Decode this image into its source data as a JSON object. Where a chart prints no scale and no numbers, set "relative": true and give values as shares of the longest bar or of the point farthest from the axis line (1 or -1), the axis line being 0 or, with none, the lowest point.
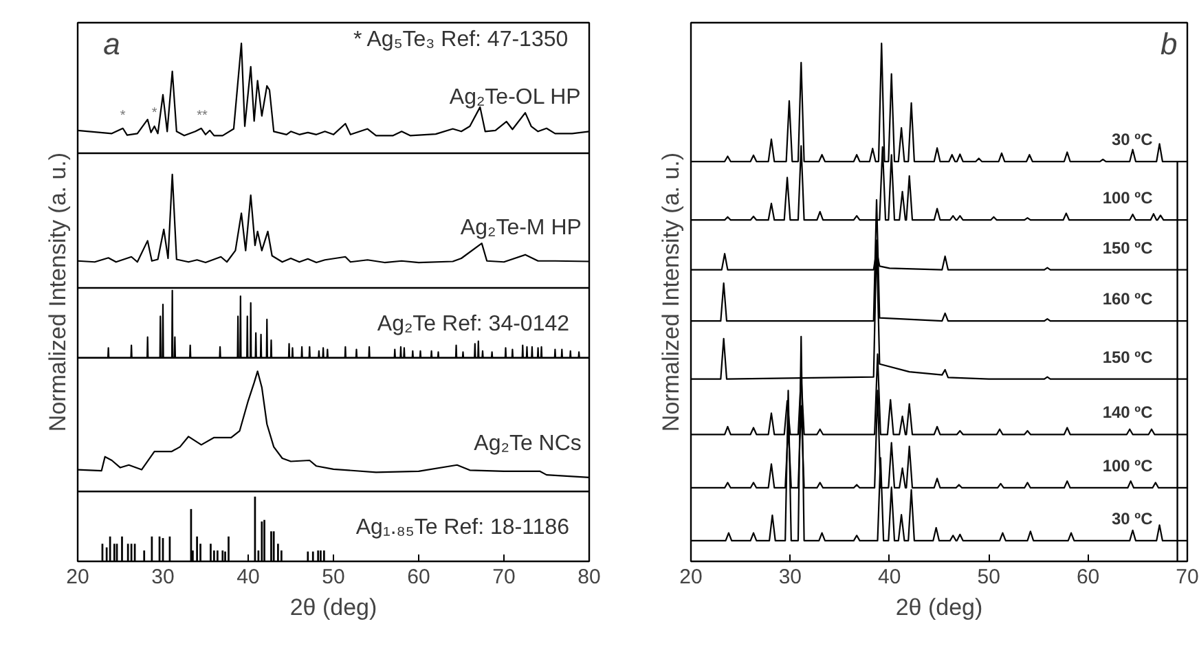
{
  "chart_data": [
    {
      "type": "line",
      "title": "a",
      "xlabel": "2θ (deg)",
      "ylabel": "Normalized Intensity (a. u.)",
      "relative": true,
      "xlim": [
        20,
        80
      ],
      "xticks": [
        20,
        30,
        40,
        50,
        60,
        70,
        80
      ],
      "grid": false,
      "annotations": [
        "* Ag₅Te₃   Ref: 47-1350",
        {
          "text": "*",
          "x": 25.3,
          "y": 0.845
        },
        {
          "text": "*",
          "x": 29.0,
          "y": 0.85
        },
        {
          "text": "**",
          "x": 34.6,
          "y": 0.845
        }
      ],
      "ref_lines": [
        {
          "axis": "y",
          "value": 0.788
        },
        {
          "axis": "y",
          "value": 0.528
        },
        {
          "axis": "y",
          "value": 0.393
        },
        {
          "axis": "y",
          "value": 0.135
        }
      ],
      "series": [
        {
          "name": "Ag₂Te-OL HP",
          "type": "line",
          "color": "#000000",
          "x": [
            20,
            24,
            25.3,
            25.8,
            27,
            28.2,
            28.6,
            29.0,
            29.4,
            30.0,
            30.5,
            31.1,
            31.6,
            32.5,
            33.8,
            34.5,
            35,
            35.5,
            36,
            37,
            38.3,
            39.2,
            39.6,
            40.3,
            40.7,
            41.1,
            41.6,
            42.2,
            42.5,
            43,
            44.5,
            45,
            46,
            47,
            48,
            49,
            50,
            51.4,
            52,
            54,
            55,
            57,
            58,
            59,
            62,
            64,
            65,
            66,
            67.2,
            67.8,
            69,
            70.3,
            71,
            72.5,
            73.2,
            74,
            75,
            76,
            78,
            80
          ],
          "values": [
            0.832,
            0.826,
            0.836,
            0.823,
            0.826,
            0.853,
            0.828,
            0.84,
            0.826,
            0.901,
            0.83,
            0.946,
            0.83,
            0.822,
            0.83,
            0.836,
            0.824,
            0.832,
            0.822,
            0.822,
            0.835,
            1.0,
            0.84,
            0.955,
            0.85,
            0.928,
            0.86,
            0.918,
            0.91,
            0.83,
            0.824,
            0.83,
            0.824,
            0.828,
            0.824,
            0.83,
            0.824,
            0.845,
            0.824,
            0.835,
            0.822,
            0.822,
            0.83,
            0.822,
            0.825,
            0.835,
            0.83,
            0.84,
            0.877,
            0.83,
            0.832,
            0.849,
            0.834,
            0.866,
            0.84,
            0.83,
            0.836,
            0.826,
            0.826,
            0.83
          ]
        },
        {
          "name": "Ag₂Te-M HP",
          "type": "line",
          "color": "#000000",
          "x": [
            20,
            22,
            23.6,
            24.5,
            26.3,
            27,
            28.2,
            28.7,
            29.4,
            30.1,
            30.6,
            31.1,
            31.6,
            33,
            34,
            35,
            36.8,
            37.5,
            38.5,
            39.2,
            39.7,
            40.3,
            40.8,
            41.1,
            41.6,
            42.3,
            42.8,
            44,
            45,
            46,
            47,
            48,
            49,
            51.4,
            52,
            54,
            56,
            58,
            60,
            64,
            65,
            67.4,
            68,
            70,
            72.5,
            74,
            76,
            80
          ],
          "values": [
            0.58,
            0.578,
            0.586,
            0.578,
            0.588,
            0.578,
            0.619,
            0.58,
            0.583,
            0.641,
            0.585,
            0.747,
            0.583,
            0.578,
            0.582,
            0.577,
            0.588,
            0.578,
            0.6,
            0.672,
            0.6,
            0.707,
            0.61,
            0.637,
            0.6,
            0.637,
            0.59,
            0.578,
            0.585,
            0.578,
            0.584,
            0.577,
            0.582,
            0.588,
            0.578,
            0.582,
            0.577,
            0.58,
            0.577,
            0.579,
            0.585,
            0.614,
            0.58,
            0.578,
            0.592,
            0.58,
            0.58,
            0.579
          ]
        },
        {
          "name": "Ag₂Te   Ref: 34-0142",
          "type": "line",
          "color": "#000000",
          "x": [
            20,
            23.55,
            23.6,
            23.65,
            26.25,
            26.3,
            26.35,
            28.15,
            28.2,
            28.25,
            29.65,
            29.7,
            29.75,
            29.95,
            30.0,
            30.05,
            31.05,
            31.1,
            31.15,
            31.35,
            31.4,
            31.45,
            33.15,
            33.2,
            33.25,
            36.65,
            36.7,
            36.75,
            38.75,
            38.8,
            38.85,
            39.05,
            39.1,
            39.15,
            39.85,
            39.9,
            39.95,
            40.25,
            40.3,
            40.35,
            40.85,
            40.9,
            40.95,
            41.45,
            41.5,
            41.55,
            42.15,
            42.2,
            42.25,
            42.65,
            42.7,
            42.75,
            44.75,
            44.8,
            44.85,
            45.15,
            45.2,
            45.25,
            46.25,
            46.3,
            46.35,
            47.15,
            47.2,
            47.25,
            48.25,
            48.3,
            48.35,
            48.75,
            48.8,
            48.85,
            49.25,
            49.3,
            49.35,
            51.35,
            51.4,
            51.45,
            52.65,
            52.7,
            52.75,
            54.15,
            54.2,
            54.25,
            57.15,
            57.2,
            57.25,
            57.85,
            57.9,
            57.95,
            58.25,
            58.3,
            58.35,
            59.25,
            59.3,
            59.35,
            60.15,
            60.2,
            60.25,
            61.45,
            61.5,
            61.55,
            62.25,
            62.3,
            62.35,
            64.35,
            64.4,
            64.45,
            65.15,
            65.2,
            65.25,
            66.55,
            66.6,
            66.65,
            66.95,
            67.0,
            67.05,
            67.45,
            67.5,
            67.55,
            68.55,
            68.6,
            68.65,
            70.15,
            70.2,
            70.25,
            70.95,
            71.0,
            71.05,
            72.15,
            72.2,
            72.25,
            72.65,
            72.7,
            72.75,
            73.25,
            73.3,
            73.35,
            73.95,
            74.0,
            74.05,
            74.35,
            74.4,
            74.45,
            75.95,
            76.0,
            76.05,
            76.75,
            76.8,
            76.85,
            77.75,
            77.8,
            77.85,
            78.75,
            78.8,
            78.85,
            80
          ],
          "values": [
            0.393,
            0.393,
            0.412,
            0.393,
            0.393,
            0.417,
            0.393,
            0.393,
            0.433,
            0.393,
            0.393,
            0.473,
            0.393,
            0.393,
            0.496,
            0.393,
            0.393,
            0.523,
            0.393,
            0.393,
            0.433,
            0.393,
            0.393,
            0.417,
            0.393,
            0.393,
            0.414,
            0.393,
            0.393,
            0.473,
            0.393,
            0.393,
            0.512,
            0.393,
            0.393,
            0.473,
            0.393,
            0.393,
            0.499,
            0.393,
            0.393,
            0.441,
            0.393,
            0.393,
            0.438,
            0.393,
            0.393,
            0.467,
            0.393,
            0.393,
            0.427,
            0.393,
            0.393,
            0.42,
            0.393,
            0.393,
            0.412,
            0.393,
            0.393,
            0.414,
            0.393,
            0.393,
            0.414,
            0.393,
            0.393,
            0.406,
            0.393,
            0.393,
            0.412,
            0.393,
            0.393,
            0.409,
            0.393,
            0.393,
            0.414,
            0.393,
            0.393,
            0.409,
            0.393,
            0.393,
            0.414,
            0.393,
            0.393,
            0.409,
            0.393,
            0.393,
            0.414,
            0.393,
            0.393,
            0.412,
            0.393,
            0.393,
            0.406,
            0.393,
            0.393,
            0.406,
            0.393,
            0.393,
            0.406,
            0.393,
            0.393,
            0.404,
            0.393,
            0.393,
            0.417,
            0.393,
            0.393,
            0.404,
            0.393,
            0.393,
            0.42,
            0.393,
            0.393,
            0.425,
            0.393,
            0.393,
            0.406,
            0.393,
            0.393,
            0.404,
            0.393,
            0.393,
            0.412,
            0.393,
            0.393,
            0.409,
            0.393,
            0.393,
            0.417,
            0.393,
            0.393,
            0.414,
            0.393,
            0.393,
            0.414,
            0.393,
            0.393,
            0.412,
            0.393,
            0.393,
            0.414,
            0.393,
            0.393,
            0.409,
            0.393,
            0.393,
            0.409,
            0.393,
            0.393,
            0.406,
            0.393,
            0.393,
            0.404,
            0.393,
            0.393
          ]
        },
        {
          "name": "Ag₂Te NCs",
          "type": "line",
          "color": "#000000",
          "x": [
            20,
            22.8,
            23.2,
            24,
            25,
            26,
            27.5,
            29,
            31,
            32,
            33,
            34.5,
            36,
            38,
            39,
            40,
            40.7,
            41.1,
            41.6,
            42.2,
            43,
            44,
            45,
            47.2,
            48,
            50,
            55,
            60,
            64.5,
            66,
            70,
            74.2,
            75,
            80
          ],
          "values": [
            0.177,
            0.175,
            0.202,
            0.195,
            0.181,
            0.186,
            0.177,
            0.212,
            0.212,
            0.221,
            0.241,
            0.225,
            0.239,
            0.239,
            0.252,
            0.31,
            0.345,
            0.367,
            0.336,
            0.265,
            0.221,
            0.199,
            0.193,
            0.195,
            0.184,
            0.178,
            0.172,
            0.174,
            0.186,
            0.176,
            0.174,
            0.174,
            0.167,
            0.162
          ]
        },
        {
          "name": "Ag₁.₈₅Te   Ref: 18-1186",
          "type": "bar",
          "color": "#000000",
          "x": [
            22.9,
            23.4,
            23.8,
            24.3,
            24.6,
            25.2,
            25.9,
            26.3,
            26.7,
            27.8,
            28.7,
            29.6,
            30.0,
            30.8,
            33.3,
            33.5,
            34.0,
            34.4,
            35.6,
            36.0,
            36.4,
            37.0,
            37.3,
            37.7,
            40.8,
            41.2,
            41.6,
            41.9,
            42.7,
            43.0,
            43.5,
            43.9,
            47.0,
            47.6,
            48.2,
            48.5,
            48.9
          ],
          "values": [
            0.034,
            0.027,
            0.048,
            0.034,
            0.034,
            0.048,
            0.034,
            0.034,
            0.034,
            0.021,
            0.048,
            0.048,
            0.045,
            0.048,
            0.101,
            0.021,
            0.048,
            0.034,
            0.034,
            0.021,
            0.021,
            0.021,
            0.019,
            0.048,
            0.125,
            0.021,
            0.077,
            0.08,
            0.058,
            0.058,
            0.034,
            0.021,
            0.019,
            0.019,
            0.021,
            0.021,
            0.021
          ]
        }
      ]
    },
    {
      "type": "line",
      "title": "b",
      "xlabel": "2θ (deg)",
      "ylabel": "Normalized Intensity (a. u.)",
      "relative": true,
      "xlim": [
        20,
        70
      ],
      "xticks": [
        20,
        30,
        40,
        50,
        60,
        70
      ],
      "grid": false,
      "ref_lines": [
        {
          "axis": "x",
          "value": 69
        }
      ],
      "series": [
        {
          "name": "30 ºC",
          "color": "#000000",
          "x": [
            20,
            23.4,
            23.7,
            24.0,
            26.0,
            26.3,
            26.6,
            27.8,
            28.1,
            28.4,
            29.6,
            29.9,
            30.2,
            30.8,
            31.1,
            31.4,
            32.9,
            33.2,
            33.5,
            36.4,
            36.7,
            37.0,
            38.0,
            38.3,
            38.6,
            38.9,
            39.2,
            39.5,
            39.9,
            40.2,
            40.5,
            40.9,
            41.2,
            41.5,
            41.9,
            42.2,
            42.5,
            44.5,
            44.8,
            45.1,
            46.0,
            46.3,
            46.6,
            46.8,
            47.1,
            47.4,
            48.7,
            49.0,
            49.3,
            51.0,
            51.3,
            51.6,
            53.8,
            54.1,
            54.4,
            57.6,
            57.9,
            58.2,
            61.2,
            61.5,
            61.8,
            64.2,
            64.5,
            64.8,
            66.9,
            67.2,
            67.5,
            70
          ],
          "values": [
            0.772,
            0.772,
            0.782,
            0.772,
            0.772,
            0.784,
            0.772,
            0.772,
            0.815,
            0.772,
            0.772,
            0.889,
            0.772,
            0.772,
            0.963,
            0.772,
            0.772,
            0.785,
            0.772,
            0.772,
            0.785,
            0.772,
            0.772,
            0.797,
            0.772,
            0.772,
            1.0,
            0.772,
            0.772,
            0.941,
            0.772,
            0.772,
            0.837,
            0.772,
            0.772,
            0.885,
            0.772,
            0.772,
            0.798,
            0.772,
            0.772,
            0.785,
            0.772,
            0.772,
            0.786,
            0.772,
            0.772,
            0.778,
            0.772,
            0.772,
            0.788,
            0.772,
            0.772,
            0.785,
            0.772,
            0.772,
            0.79,
            0.772,
            0.772,
            0.776,
            0.772,
            0.772,
            0.795,
            0.772,
            0.772,
            0.806,
            0.772,
            0.772
          ]
        },
        {
          "name": "100 ºC",
          "color": "#000000",
          "x": [
            20,
            23.4,
            23.7,
            24.0,
            26.0,
            26.3,
            26.6,
            27.8,
            28.1,
            28.4,
            29.4,
            29.7,
            30.0,
            30.8,
            31.1,
            31.4,
            32.7,
            33.0,
            33.3,
            36.4,
            36.7,
            37.0,
            39.0,
            39.3,
            39.6,
            39.9,
            40.2,
            40.5,
            41.0,
            41.3,
            41.6,
            41.7,
            42.0,
            42.3,
            44.5,
            44.8,
            45.1,
            46.1,
            46.4,
            46.7,
            46.8,
            47.1,
            47.4,
            50.2,
            50.5,
            50.8,
            53.6,
            53.9,
            54.2,
            57.5,
            57.8,
            58.1,
            64.2,
            64.5,
            64.8,
            66.3,
            66.6,
            66.9,
            67.0,
            67.3,
            67.6,
            70
          ],
          "values": [
            0.659,
            0.659,
            0.665,
            0.659,
            0.659,
            0.666,
            0.659,
            0.659,
            0.691,
            0.659,
            0.659,
            0.741,
            0.659,
            0.659,
            0.802,
            0.659,
            0.659,
            0.675,
            0.659,
            0.659,
            0.667,
            0.659,
            0.659,
            0.8,
            0.659,
            0.659,
            0.785,
            0.659,
            0.659,
            0.714,
            0.659,
            0.659,
            0.744,
            0.659,
            0.659,
            0.681,
            0.659,
            0.659,
            0.667,
            0.659,
            0.659,
            0.667,
            0.659,
            0.659,
            0.665,
            0.659,
            0.659,
            0.663,
            0.659,
            0.659,
            0.672,
            0.659,
            0.659,
            0.67,
            0.659,
            0.659,
            0.671,
            0.659,
            0.659,
            0.668,
            0.659,
            0.659
          ]
        },
        {
          "name": "150 ºC",
          "color": "#000000",
          "x": [
            20,
            23.1,
            23.4,
            23.7,
            38.4,
            38.7,
            39.0,
            40.0,
            45.3,
            45.6,
            45.9,
            55.6,
            55.9,
            56.2,
            70
          ],
          "values": [
            0.563,
            0.563,
            0.594,
            0.563,
            0.563,
            0.6,
            0.57,
            0.566,
            0.563,
            0.589,
            0.563,
            0.563,
            0.567,
            0.563,
            0.563
          ]
        },
        {
          "name": "160 ºC",
          "color": "#000000",
          "x": [
            20,
            23.0,
            23.3,
            23.6,
            38.4,
            38.7,
            39.0,
            45.3,
            45.6,
            45.9,
            55.6,
            55.9,
            56.2,
            70
          ],
          "values": [
            0.464,
            0.464,
            0.537,
            0.464,
            0.464,
            0.698,
            0.47,
            0.464,
            0.479,
            0.464,
            0.464,
            0.468,
            0.464,
            0.464
          ]
        },
        {
          "name": "150 ºC",
          "color": "#000000",
          "x": [
            20,
            23.0,
            23.3,
            23.6,
            38.4,
            38.7,
            39.0,
            42.0,
            45.3,
            45.6,
            45.9,
            50.0,
            55.6,
            55.9,
            56.2,
            70
          ],
          "values": [
            0.352,
            0.352,
            0.43,
            0.352,
            0.356,
            0.62,
            0.381,
            0.366,
            0.36,
            0.37,
            0.355,
            0.352,
            0.352,
            0.356,
            0.352,
            0.352
          ]
        },
        {
          "name": "140 ºC",
          "color": "#000000",
          "x": [
            20,
            23.4,
            23.7,
            24.0,
            26.0,
            26.3,
            26.6,
            27.8,
            28.1,
            28.4,
            29.4,
            29.7,
            30.0,
            30.8,
            31.1,
            31.4,
            32.7,
            33.0,
            33.3,
            38.5,
            38.8,
            39.1,
            39.8,
            40.1,
            40.4,
            41.0,
            41.3,
            41.6,
            41.7,
            42.0,
            42.3,
            44.5,
            44.8,
            45.1,
            46.8,
            47.1,
            47.4,
            50.8,
            51.1,
            51.4,
            53.6,
            53.9,
            54.2,
            57.6,
            57.9,
            58.2,
            63.9,
            64.2,
            64.5,
            66.1,
            66.4,
            66.7,
            70
          ],
          "values": [
            0.245,
            0.245,
            0.26,
            0.245,
            0.245,
            0.258,
            0.245,
            0.245,
            0.286,
            0.245,
            0.245,
            0.31,
            0.245,
            0.245,
            0.36,
            0.245,
            0.245,
            0.255,
            0.245,
            0.245,
            0.4,
            0.245,
            0.245,
            0.312,
            0.245,
            0.245,
            0.28,
            0.245,
            0.245,
            0.304,
            0.245,
            0.245,
            0.26,
            0.245,
            0.245,
            0.252,
            0.245,
            0.245,
            0.255,
            0.245,
            0.245,
            0.252,
            0.245,
            0.245,
            0.258,
            0.245,
            0.245,
            0.255,
            0.245,
            0.245,
            0.255,
            0.245,
            0.245
          ]
        },
        {
          "name": "100 ºC",
          "color": "#000000",
          "x": [
            20,
            23.4,
            23.7,
            24.0,
            26.0,
            26.3,
            26.6,
            27.8,
            28.1,
            28.4,
            29.5,
            29.8,
            30.1,
            30.8,
            31.1,
            31.4,
            32.7,
            33.0,
            33.3,
            36.4,
            36.7,
            37.0,
            38.5,
            38.8,
            39.1,
            39.9,
            40.2,
            40.5,
            41.0,
            41.3,
            41.6,
            41.7,
            42.0,
            42.3,
            44.5,
            44.8,
            45.1,
            46.7,
            47.0,
            47.3,
            50.9,
            51.2,
            51.5,
            53.6,
            53.9,
            54.2,
            57.6,
            57.9,
            58.2,
            64.0,
            64.3,
            64.6,
            66.5,
            66.8,
            67.1,
            70
          ],
          "values": [
            0.142,
            0.142,
            0.152,
            0.142,
            0.142,
            0.152,
            0.142,
            0.142,
            0.188,
            0.142,
            0.142,
            0.26,
            0.142,
            0.142,
            0.3,
            0.142,
            0.142,
            0.152,
            0.142,
            0.142,
            0.148,
            0.142,
            0.142,
            0.33,
            0.142,
            0.142,
            0.229,
            0.142,
            0.142,
            0.18,
            0.142,
            0.142,
            0.222,
            0.142,
            0.142,
            0.16,
            0.142,
            0.142,
            0.148,
            0.142,
            0.142,
            0.15,
            0.142,
            0.142,
            0.152,
            0.142,
            0.142,
            0.155,
            0.142,
            0.142,
            0.155,
            0.142,
            0.142,
            0.152,
            0.142,
            0.142
          ]
        },
        {
          "name": "30 ºC",
          "color": "#000000",
          "x": [
            20,
            23.5,
            23.8,
            24.1,
            26.0,
            26.3,
            26.6,
            27.9,
            28.2,
            28.5,
            29.5,
            29.8,
            30.1,
            30.8,
            31.1,
            31.4,
            32.9,
            33.2,
            33.5,
            36.4,
            36.7,
            37.0,
            38.8,
            39.1,
            39.4,
            39.9,
            40.2,
            40.5,
            40.9,
            41.2,
            41.5,
            41.9,
            42.2,
            42.5,
            44.4,
            44.7,
            45.0,
            46.1,
            46.4,
            46.7,
            46.8,
            47.1,
            47.4,
            51.1,
            51.4,
            51.7,
            53.9,
            54.2,
            54.5,
            58.0,
            58.3,
            58.6,
            64.2,
            64.5,
            64.8,
            66.9,
            67.2,
            67.5,
            70
          ],
          "values": [
            0.04,
            0.04,
            0.055,
            0.04,
            0.04,
            0.055,
            0.04,
            0.04,
            0.089,
            0.04,
            0.04,
            0.33,
            0.04,
            0.04,
            0.434,
            0.04,
            0.04,
            0.055,
            0.04,
            0.04,
            0.05,
            0.04,
            0.04,
            0.2,
            0.04,
            0.04,
            0.143,
            0.04,
            0.04,
            0.09,
            0.04,
            0.04,
            0.138,
            0.04,
            0.04,
            0.065,
            0.04,
            0.04,
            0.05,
            0.04,
            0.04,
            0.052,
            0.04,
            0.04,
            0.055,
            0.04,
            0.04,
            0.058,
            0.04,
            0.04,
            0.055,
            0.04,
            0.04,
            0.06,
            0.04,
            0.04,
            0.07,
            0.04,
            0.04
          ]
        }
      ]
    }
  ]
}
